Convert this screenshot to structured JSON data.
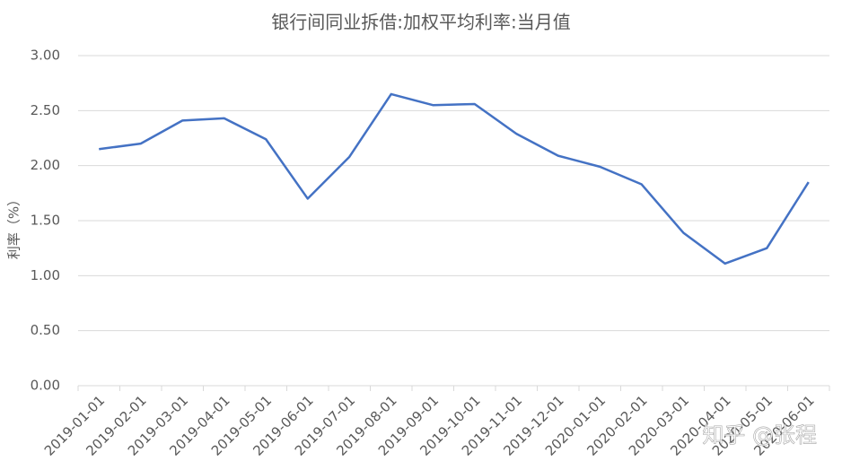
{
  "chart_data": {
    "type": "line",
    "title": "银行间同业拆借:加权平均利率:当月值",
    "y_label": "利率（%）",
    "watermark": "知乎 @张程",
    "categories": [
      "2019-01-01",
      "2019-02-01",
      "2019-03-01",
      "2019-04-01",
      "2019-05-01",
      "2019-06-01",
      "2019-07-01",
      "2019-08-01",
      "2019-09-01",
      "2019-10-01",
      "2019-11-01",
      "2019-12-01",
      "2020-01-01",
      "2020-02-01",
      "2020-03-01",
      "2020-04-01",
      "2020-05-01",
      "2020-06-01"
    ],
    "series": [
      {
        "name": "利率",
        "color": "#4472c4",
        "values": [
          2.15,
          2.2,
          2.41,
          2.43,
          2.24,
          1.7,
          2.08,
          2.65,
          2.55,
          2.56,
          2.29,
          2.09,
          1.99,
          1.83,
          1.39,
          1.11,
          1.25,
          1.85
        ]
      }
    ],
    "ylim": [
      0,
      3
    ],
    "yticks": [
      {
        "value": 0,
        "label": "0.00"
      },
      {
        "value": 0.5,
        "label": "0.50"
      },
      {
        "value": 1,
        "label": "1.00"
      },
      {
        "value": 1.5,
        "label": "1.50"
      },
      {
        "value": 2,
        "label": "2.00"
      },
      {
        "value": 2.5,
        "label": "2.50"
      },
      {
        "value": 3,
        "label": "3.00"
      }
    ],
    "grid": true
  }
}
